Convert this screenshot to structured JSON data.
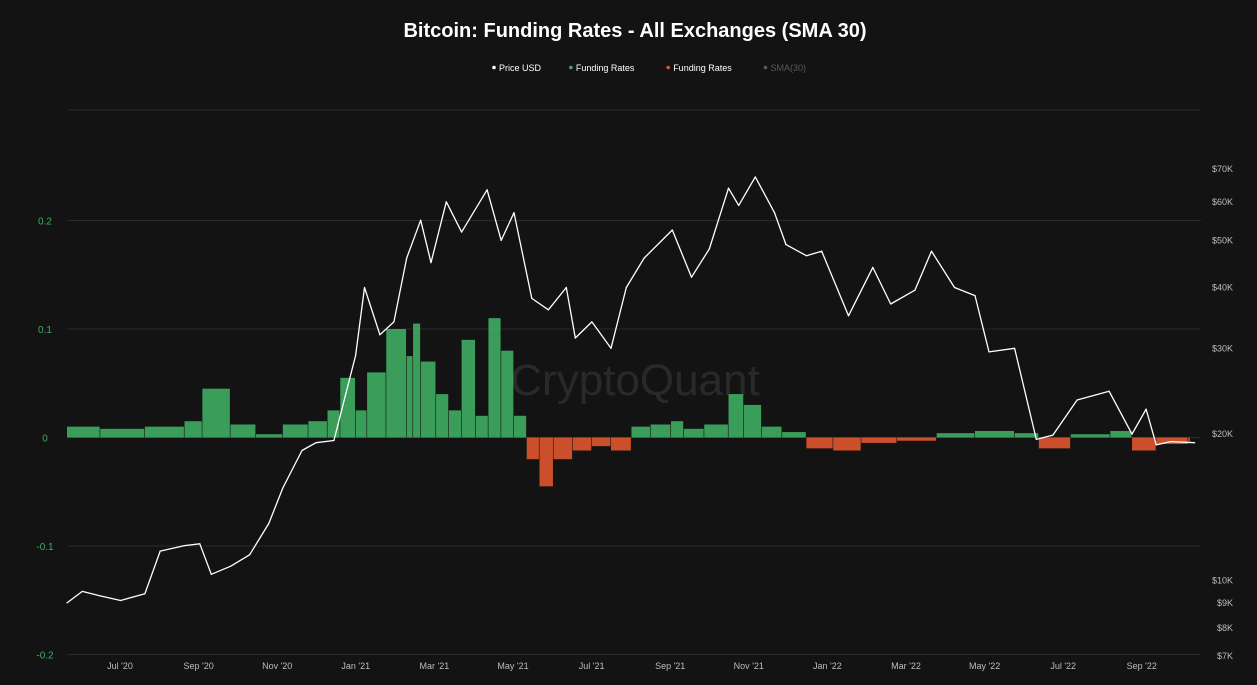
{
  "chart_data": {
    "type": "bar",
    "title": "Bitcoin: Funding Rates - All Exchanges (SMA 30)",
    "watermark": "CryptoQuant",
    "legend": [
      {
        "label": "Price USD",
        "color": "#ffffff"
      },
      {
        "label": "Funding Rates",
        "color": "#3fae63"
      },
      {
        "label": "Funding Rates",
        "color": "#e0562f"
      },
      {
        "label": "SMA(30)",
        "color": "#5a5a5a"
      }
    ],
    "x_ticks": [
      "Jul '20",
      "Sep '20",
      "Nov '20",
      "Jan '21",
      "Mar '21",
      "May '21",
      "Jul '21",
      "Sep '21",
      "Nov '21",
      "Jan '22",
      "Mar '22",
      "May '22",
      "Jul '22",
      "Sep '22"
    ],
    "x_range": [
      "2020-05-20",
      "2022-10-25"
    ],
    "y_left": {
      "ticks": [
        "0.2",
        "0.1",
        "0",
        "-0.1",
        "-0.2"
      ],
      "range": [
        -0.2,
        0.3
      ]
    },
    "y_right": {
      "scale": "log",
      "ticks": [
        "$70K",
        "$60K",
        "$50K",
        "$40K",
        "$30K",
        "$20K",
        "$10K",
        "$9K",
        "$8K",
        "$7K"
      ],
      "tick_values": [
        70000,
        60000,
        50000,
        40000,
        30000,
        20000,
        10000,
        9000,
        8000,
        7000
      ],
      "range": [
        7000,
        80000
      ]
    },
    "grid": true,
    "colors": {
      "background": "#131313",
      "grid": "#2a2a2a",
      "positive": "#3fae63",
      "negative": "#e0562f",
      "price": "#ffffff"
    },
    "series": [
      {
        "name": "Price USD",
        "x": [
          "2020-05-20",
          "2020-06-01",
          "2020-06-15",
          "2020-07-01",
          "2020-07-20",
          "2020-08-01",
          "2020-08-20",
          "2020-09-01",
          "2020-09-10",
          "2020-09-25",
          "2020-10-10",
          "2020-10-25",
          "2020-11-05",
          "2020-11-20",
          "2020-12-01",
          "2020-12-15",
          "2021-01-01",
          "2021-01-08",
          "2021-01-20",
          "2021-01-31",
          "2021-02-10",
          "2021-02-21",
          "2021-03-01",
          "2021-03-13",
          "2021-03-25",
          "2021-04-14",
          "2021-04-25",
          "2021-05-05",
          "2021-05-19",
          "2021-06-01",
          "2021-06-15",
          "2021-06-22",
          "2021-07-05",
          "2021-07-20",
          "2021-08-01",
          "2021-08-15",
          "2021-09-06",
          "2021-09-21",
          "2021-10-05",
          "2021-10-20",
          "2021-10-28",
          "2021-11-10",
          "2021-11-25",
          "2021-12-04",
          "2021-12-20",
          "2022-01-01",
          "2022-01-22",
          "2022-02-10",
          "2022-02-24",
          "2022-03-15",
          "2022-03-28",
          "2022-04-15",
          "2022-05-01",
          "2022-05-12",
          "2022-06-01",
          "2022-06-18",
          "2022-07-01",
          "2022-07-20",
          "2022-08-14",
          "2022-09-01",
          "2022-09-12",
          "2022-09-20",
          "2022-10-01",
          "2022-10-20"
        ],
        "y": [
          9000,
          9500,
          9300,
          9100,
          9400,
          11500,
          11800,
          11900,
          10300,
          10700,
          11300,
          13100,
          15500,
          18500,
          19200,
          19400,
          29000,
          40000,
          32000,
          34000,
          46000,
          55000,
          45000,
          60000,
          52000,
          63500,
          50000,
          57000,
          38000,
          36000,
          40000,
          31500,
          34000,
          30000,
          40000,
          46000,
          52500,
          42000,
          48000,
          64000,
          59000,
          67500,
          57000,
          49000,
          46500,
          47500,
          35000,
          44000,
          37000,
          39500,
          47500,
          40000,
          38500,
          29500,
          30000,
          19500,
          19900,
          23500,
          24500,
          20000,
          22500,
          19000,
          19300,
          19200
        ]
      },
      {
        "name": "Funding Rates",
        "x": [
          "2020-05-20",
          "2020-06-15",
          "2020-07-20",
          "2020-08-20",
          "2020-09-03",
          "2020-09-25",
          "2020-10-15",
          "2020-11-05",
          "2020-11-25",
          "2020-12-10",
          "2020-12-20",
          "2021-01-01",
          "2021-01-10",
          "2021-01-25",
          "2021-02-10",
          "2021-02-15",
          "2021-02-21",
          "2021-03-05",
          "2021-03-15",
          "2021-03-25",
          "2021-04-05",
          "2021-04-15",
          "2021-04-25",
          "2021-05-05",
          "2021-05-15",
          "2021-05-25",
          "2021-06-05",
          "2021-06-20",
          "2021-07-05",
          "2021-07-20",
          "2021-08-05",
          "2021-08-20",
          "2021-09-05",
          "2021-09-15",
          "2021-10-01",
          "2021-10-20",
          "2021-11-01",
          "2021-11-15",
          "2021-12-01",
          "2021-12-20",
          "2022-01-10",
          "2022-02-01",
          "2022-03-01",
          "2022-04-01",
          "2022-05-01",
          "2022-06-01",
          "2022-06-20",
          "2022-07-15",
          "2022-08-15",
          "2022-09-01",
          "2022-09-20",
          "2022-10-15"
        ],
        "y": [
          0.01,
          0.008,
          0.01,
          0.015,
          0.045,
          0.012,
          0.003,
          0.012,
          0.015,
          0.025,
          0.055,
          0.025,
          0.06,
          0.1,
          0.075,
          0.105,
          0.07,
          0.04,
          0.025,
          0.09,
          0.02,
          0.11,
          0.08,
          0.02,
          -0.02,
          -0.045,
          -0.02,
          -0.012,
          -0.008,
          -0.012,
          0.01,
          0.012,
          0.015,
          0.008,
          0.012,
          0.04,
          0.03,
          0.01,
          0.005,
          -0.01,
          -0.012,
          -0.005,
          -0.003,
          0.004,
          0.006,
          0.004,
          -0.01,
          0.003,
          0.006,
          -0.012,
          -0.006,
          -0.004
        ]
      }
    ]
  }
}
